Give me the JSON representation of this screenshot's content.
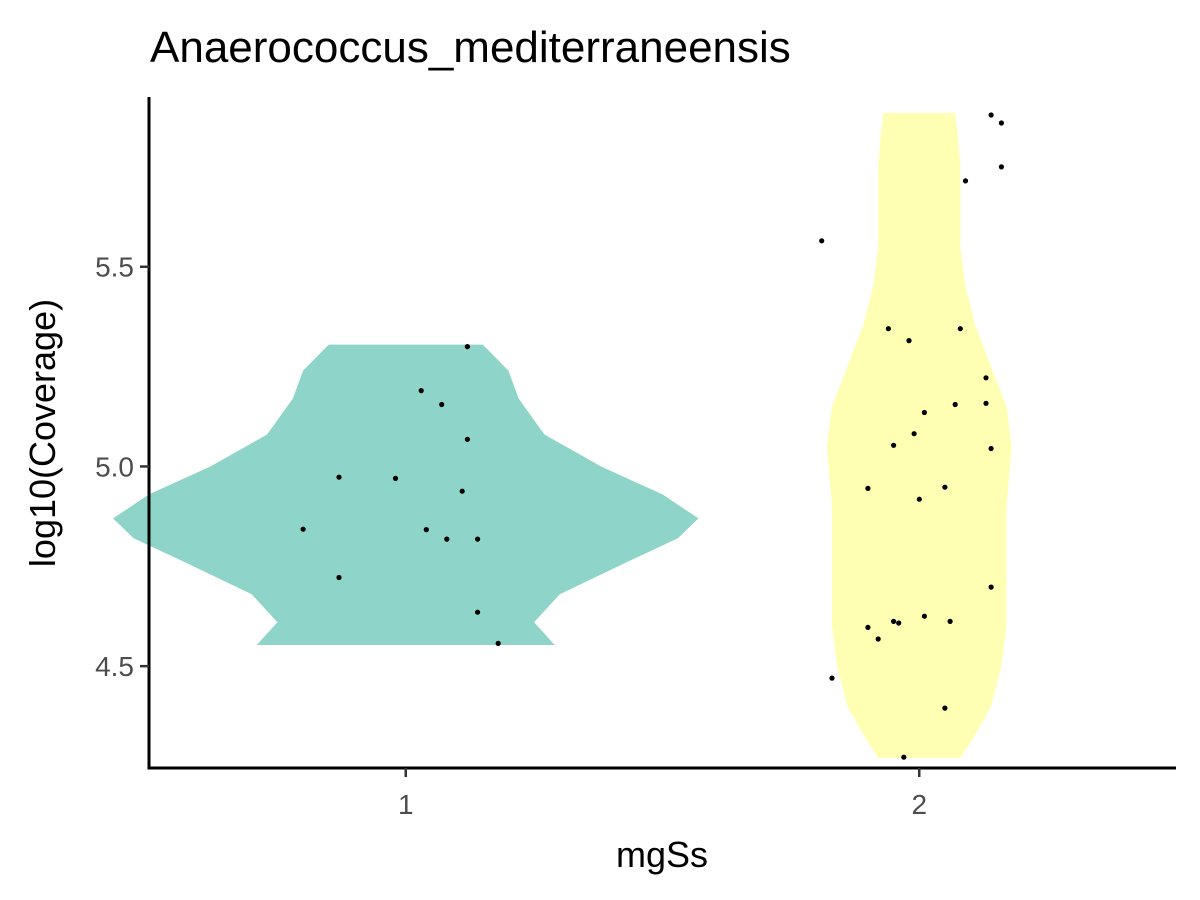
{
  "chart_data": {
    "type": "violin",
    "title": "Anaerococcus_mediterraneensis",
    "xlabel": "mgSs",
    "ylabel": "log10(Coverage)",
    "categories": [
      "1",
      "2"
    ],
    "ylim": [
      4.245,
      5.925
    ],
    "yticks": [
      4.5,
      5.0,
      5.5
    ],
    "ytick_labels": [
      "4.5",
      "5.0",
      "5.5"
    ],
    "grid": false,
    "legend": "none",
    "groups": [
      {
        "category": "1",
        "fill": "#8fd4c8",
        "density_profile": [
          {
            "y": 4.553,
            "half_width": 0.29
          },
          {
            "y": 4.61,
            "half_width": 0.25
          },
          {
            "y": 4.68,
            "half_width": 0.3
          },
          {
            "y": 4.76,
            "half_width": 0.43
          },
          {
            "y": 4.82,
            "half_width": 0.53
          },
          {
            "y": 4.87,
            "half_width": 0.57
          },
          {
            "y": 4.93,
            "half_width": 0.5
          },
          {
            "y": 5.0,
            "half_width": 0.38
          },
          {
            "y": 5.08,
            "half_width": 0.27
          },
          {
            "y": 5.17,
            "half_width": 0.22
          },
          {
            "y": 5.24,
            "half_width": 0.2
          },
          {
            "y": 5.305,
            "half_width": 0.15
          }
        ],
        "points": [
          {
            "x_offset": -0.2,
            "y": 4.843
          },
          {
            "x_offset": -0.13,
            "y": 4.973
          },
          {
            "x_offset": -0.13,
            "y": 4.722
          },
          {
            "x_offset": -0.02,
            "y": 4.97
          },
          {
            "x_offset": 0.03,
            "y": 5.19
          },
          {
            "x_offset": 0.04,
            "y": 4.842
          },
          {
            "x_offset": 0.07,
            "y": 5.155
          },
          {
            "x_offset": 0.08,
            "y": 4.818
          },
          {
            "x_offset": 0.11,
            "y": 4.938
          },
          {
            "x_offset": 0.12,
            "y": 5.068
          },
          {
            "x_offset": 0.12,
            "y": 5.3
          },
          {
            "x_offset": 0.14,
            "y": 4.818
          },
          {
            "x_offset": 0.14,
            "y": 4.635
          },
          {
            "x_offset": 0.18,
            "y": 4.557
          }
        ]
      },
      {
        "category": "2",
        "fill": "#ffffb3",
        "density_profile": [
          {
            "y": 4.27,
            "half_width": 0.08
          },
          {
            "y": 4.33,
            "half_width": 0.11
          },
          {
            "y": 4.4,
            "half_width": 0.14
          },
          {
            "y": 4.5,
            "half_width": 0.16
          },
          {
            "y": 4.6,
            "half_width": 0.17
          },
          {
            "y": 4.75,
            "half_width": 0.17
          },
          {
            "y": 4.9,
            "half_width": 0.17
          },
          {
            "y": 5.05,
            "half_width": 0.18
          },
          {
            "y": 5.15,
            "half_width": 0.17
          },
          {
            "y": 5.25,
            "half_width": 0.14
          },
          {
            "y": 5.35,
            "half_width": 0.11
          },
          {
            "y": 5.45,
            "half_width": 0.09
          },
          {
            "y": 5.55,
            "half_width": 0.08
          },
          {
            "y": 5.65,
            "half_width": 0.08
          },
          {
            "y": 5.75,
            "half_width": 0.08
          },
          {
            "y": 5.83,
            "half_width": 0.075
          },
          {
            "y": 5.885,
            "half_width": 0.07
          }
        ],
        "points": [
          {
            "x_offset": -0.19,
            "y": 5.565
          },
          {
            "x_offset": -0.17,
            "y": 4.47
          },
          {
            "x_offset": -0.1,
            "y": 4.945
          },
          {
            "x_offset": -0.1,
            "y": 4.597
          },
          {
            "x_offset": -0.08,
            "y": 4.568
          },
          {
            "x_offset": -0.06,
            "y": 5.345
          },
          {
            "x_offset": -0.05,
            "y": 4.612
          },
          {
            "x_offset": -0.05,
            "y": 5.053
          },
          {
            "x_offset": -0.04,
            "y": 4.608
          },
          {
            "x_offset": -0.03,
            "y": 4.272
          },
          {
            "x_offset": -0.02,
            "y": 5.315
          },
          {
            "x_offset": -0.01,
            "y": 5.082
          },
          {
            "x_offset": 0.0,
            "y": 4.918
          },
          {
            "x_offset": 0.01,
            "y": 5.135
          },
          {
            "x_offset": 0.01,
            "y": 4.625
          },
          {
            "x_offset": 0.05,
            "y": 4.948
          },
          {
            "x_offset": 0.05,
            "y": 4.395
          },
          {
            "x_offset": 0.06,
            "y": 4.612
          },
          {
            "x_offset": 0.07,
            "y": 5.155
          },
          {
            "x_offset": 0.08,
            "y": 5.345
          },
          {
            "x_offset": 0.09,
            "y": 5.715
          },
          {
            "x_offset": 0.13,
            "y": 5.158
          },
          {
            "x_offset": 0.13,
            "y": 5.222
          },
          {
            "x_offset": 0.14,
            "y": 5.045
          },
          {
            "x_offset": 0.14,
            "y": 4.698
          },
          {
            "x_offset": 0.14,
            "y": 5.88
          },
          {
            "x_offset": 0.16,
            "y": 5.86
          },
          {
            "x_offset": 0.16,
            "y": 5.75
          }
        ]
      }
    ]
  }
}
